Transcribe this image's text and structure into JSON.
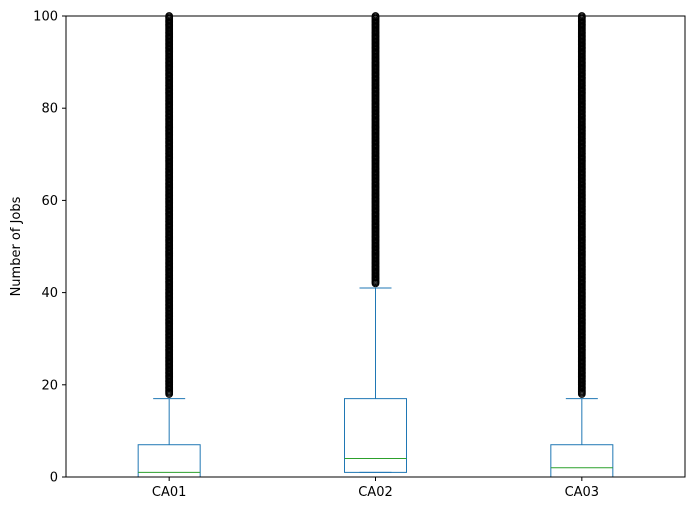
{
  "chart_data": {
    "type": "box",
    "title": "",
    "xlabel": "",
    "ylabel": "Number of Jobs",
    "ylim": [
      0,
      100
    ],
    "yticks": [
      "0",
      "20",
      "40",
      "60",
      "80",
      "100"
    ],
    "categories": [
      "CA01",
      "CA02",
      "CA03"
    ],
    "boxes": [
      {
        "category": "CA01",
        "whisker_low": 0,
        "q1": 0,
        "median": 1,
        "q3": 7,
        "whisker_high": 17,
        "outliers_from": 18,
        "outliers_to": 100
      },
      {
        "category": "CA02",
        "whisker_low": 1,
        "q1": 1,
        "median": 4,
        "q3": 17,
        "whisker_high": 41,
        "outliers_from": 42,
        "outliers_to": 100
      },
      {
        "category": "CA03",
        "whisker_low": 0,
        "q1": 0,
        "median": 2,
        "q3": 7,
        "whisker_high": 17,
        "outliers_from": 18,
        "outliers_to": 100
      }
    ],
    "grid": false,
    "legend": "none",
    "colors": {
      "box": "#1f77b4",
      "median": "#2ca02c",
      "outlier": "#000000",
      "axis": "#000000"
    }
  }
}
